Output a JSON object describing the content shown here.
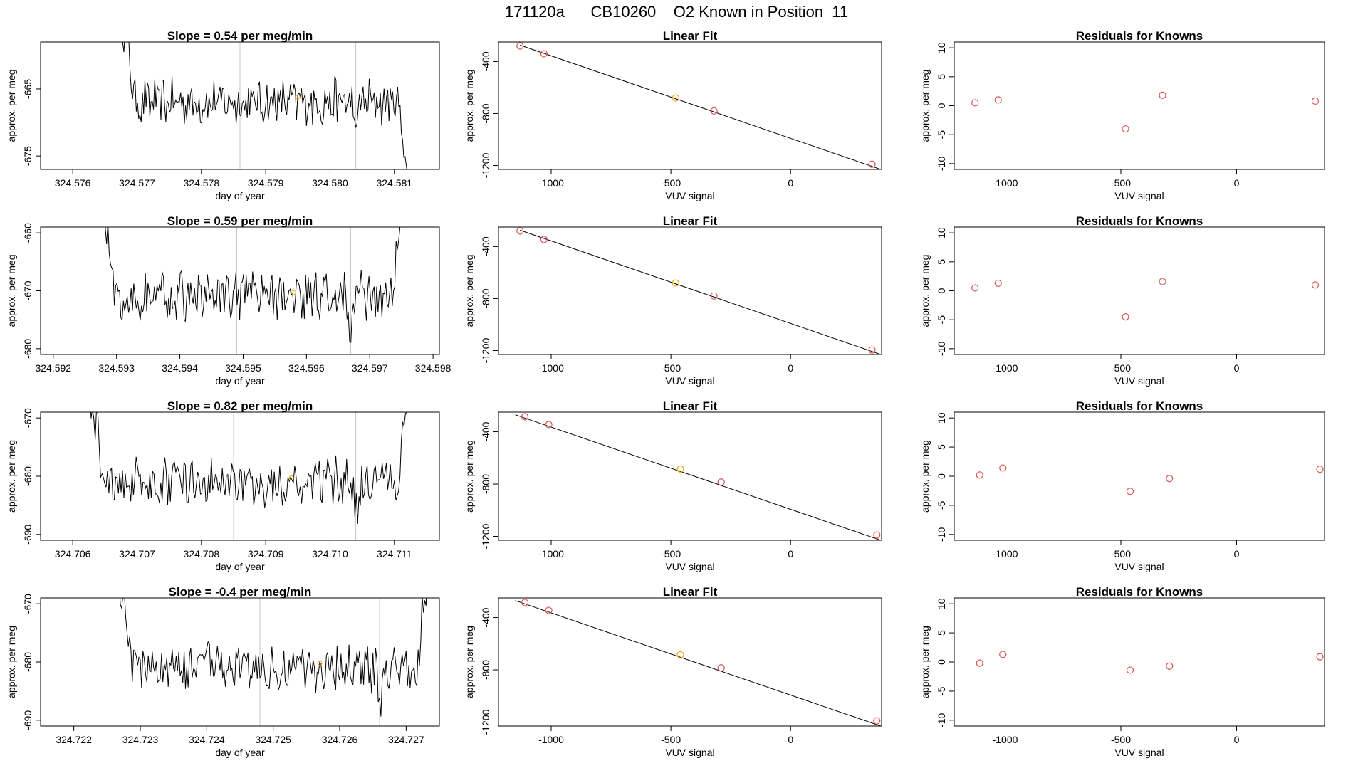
{
  "page": {
    "title": "171120a      CB10260    O2 Known in Position  11"
  },
  "colors": {
    "line": "#000000",
    "highlight": "#e8a317",
    "points": "#d9534f",
    "vline": "#c8c8c8"
  },
  "chart_data": [
    {
      "type": "line",
      "row": 0,
      "col": 0,
      "title": "Slope =  0.54  per meg/min",
      "xlabel": "day of year",
      "ylabel": "approx. per meg",
      "xlim": [
        324.5755,
        324.5817
      ],
      "ylim": [
        -677,
        -658
      ],
      "xticks": [
        324.576,
        324.577,
        324.578,
        324.579,
        324.58,
        324.581
      ],
      "xtick_labels": [
        "324.576",
        "324.577",
        "324.578",
        "324.579",
        "324.580",
        "324.581"
      ],
      "yticks": [
        -675,
        -665
      ],
      "ytick_labels": [
        "-675",
        "-665"
      ],
      "vlines": [
        324.5786,
        324.5804
      ],
      "series_start": 324.5767,
      "series_end": 324.5813,
      "baseline": -667,
      "highlight": {
        "x": 324.5795,
        "y": -666.2
      }
    },
    {
      "type": "scatter",
      "row": 0,
      "col": 1,
      "title": "Linear Fit",
      "xlabel": "VUV signal",
      "ylabel": "approx. per meg",
      "xlim": [
        -1220,
        380
      ],
      "ylim": [
        -1230,
        -250
      ],
      "xticks": [
        -1000,
        -500,
        0
      ],
      "xtick_labels": [
        "-1000",
        "-500",
        "0"
      ],
      "yticks": [
        -400,
        -800,
        -1200
      ],
      "ytick_labels": [
        "-400",
        "-800",
        "-1200"
      ],
      "line": [
        [
          -1130,
          -274
        ],
        [
          380,
          -1232
        ]
      ],
      "points": [
        [
          -1130,
          -280
        ],
        [
          -1030,
          -340
        ],
        [
          -480,
          -680
        ],
        [
          -320,
          -780
        ],
        [
          340,
          -1190
        ]
      ],
      "highlight_index": 2
    },
    {
      "type": "scatter",
      "row": 0,
      "col": 2,
      "title": "Residuals for Knowns",
      "xlabel": "VUV signal",
      "ylabel": "approx. per meg",
      "xlim": [
        -1220,
        380
      ],
      "ylim": [
        -11,
        11
      ],
      "xticks": [
        -1000,
        -500,
        0
      ],
      "xtick_labels": [
        "-1000",
        "-500",
        "0"
      ],
      "yticks": [
        -10,
        -5,
        0,
        5,
        10
      ],
      "ytick_labels": [
        "-10",
        "-5",
        "0",
        "5",
        "10"
      ],
      "points": [
        [
          -1130,
          0.5
        ],
        [
          -1030,
          1
        ],
        [
          -480,
          -4
        ],
        [
          -320,
          1.8
        ],
        [
          340,
          0.8
        ]
      ]
    },
    {
      "type": "line",
      "row": 1,
      "col": 0,
      "title": "Slope =  0.59  per meg/min",
      "xlabel": "day of year",
      "ylabel": "approx. per meg",
      "xlim": [
        324.5918,
        324.5981
      ],
      "ylim": [
        -681,
        -659
      ],
      "xticks": [
        324.592,
        324.593,
        324.594,
        324.595,
        324.596,
        324.597,
        324.598
      ],
      "xtick_labels": [
        "324.592",
        "324.593",
        "324.594",
        "324.595",
        "324.596",
        "324.597",
        "324.598"
      ],
      "yticks": [
        -680,
        -670,
        -660
      ],
      "ytick_labels": [
        "-680",
        "-670",
        "-660"
      ],
      "vlines": [
        324.5949,
        324.5967
      ],
      "series_start": 324.5927,
      "series_end": 324.5976,
      "baseline": -671,
      "highlight": {
        "x": 324.5958,
        "y": -670.3
      }
    },
    {
      "type": "scatter",
      "row": 1,
      "col": 1,
      "title": "Linear Fit",
      "xlabel": "VUV signal",
      "ylabel": "approx. per meg",
      "xlim": [
        -1220,
        380
      ],
      "ylim": [
        -1230,
        -250
      ],
      "xticks": [
        -1000,
        -500,
        0
      ],
      "xtick_labels": [
        "-1000",
        "-500",
        "0"
      ],
      "yticks": [
        -400,
        -800,
        -1200
      ],
      "ytick_labels": [
        "-400",
        "-800",
        "-1200"
      ],
      "line": [
        [
          -1130,
          -274
        ],
        [
          380,
          -1232
        ]
      ],
      "points": [
        [
          -1130,
          -280
        ],
        [
          -1030,
          -345
        ],
        [
          -480,
          -680
        ],
        [
          -320,
          -780
        ],
        [
          340,
          -1195
        ]
      ],
      "highlight_index": 2
    },
    {
      "type": "scatter",
      "row": 1,
      "col": 2,
      "title": "Residuals for Knowns",
      "xlabel": "VUV signal",
      "ylabel": "approx. per meg",
      "xlim": [
        -1220,
        380
      ],
      "ylim": [
        -11,
        11
      ],
      "xticks": [
        -1000,
        -500,
        0
      ],
      "xtick_labels": [
        "-1000",
        "-500",
        "0"
      ],
      "yticks": [
        -10,
        -5,
        0,
        5,
        10
      ],
      "ytick_labels": [
        "-10",
        "-5",
        "0",
        "5",
        "10"
      ],
      "points": [
        [
          -1130,
          0.5
        ],
        [
          -1030,
          1.3
        ],
        [
          -480,
          -4.5
        ],
        [
          -320,
          1.6
        ],
        [
          340,
          1
        ]
      ]
    },
    {
      "type": "line",
      "row": 2,
      "col": 0,
      "title": "Slope =  0.82  per meg/min",
      "xlabel": "day of year",
      "ylabel": "approx. per meg",
      "xlim": [
        324.7055,
        324.7117
      ],
      "ylim": [
        -691,
        -669
      ],
      "xticks": [
        324.706,
        324.707,
        324.708,
        324.709,
        324.71,
        324.711
      ],
      "xtick_labels": [
        "324.706",
        "324.707",
        "324.708",
        "324.709",
        "324.710",
        "324.711"
      ],
      "yticks": [
        -690,
        -680,
        -670
      ],
      "ytick_labels": [
        "-690",
        "-680",
        "-670"
      ],
      "vlines": [
        324.7085,
        324.7104
      ],
      "series_start": 324.7062,
      "series_end": 324.7113,
      "baseline": -681,
      "highlight": {
        "x": 324.7094,
        "y": -680.3
      }
    },
    {
      "type": "scatter",
      "row": 2,
      "col": 1,
      "title": "Linear Fit",
      "xlabel": "VUV signal",
      "ylabel": "approx. per meg",
      "xlim": [
        -1220,
        380
      ],
      "ylim": [
        -1230,
        -250
      ],
      "xticks": [
        -1000,
        -500,
        0
      ],
      "xtick_labels": [
        "-1000",
        "-500",
        "0"
      ],
      "yticks": [
        -400,
        -800,
        -1200
      ],
      "ytick_labels": [
        "-400",
        "-800",
        "-1200"
      ],
      "line": [
        [
          -1150,
          -270
        ],
        [
          380,
          -1232
        ]
      ],
      "points": [
        [
          -1110,
          -285
        ],
        [
          -1010,
          -345
        ],
        [
          -460,
          -685
        ],
        [
          -290,
          -785
        ],
        [
          360,
          -1190
        ]
      ],
      "highlight_index": 2
    },
    {
      "type": "scatter",
      "row": 2,
      "col": 2,
      "title": "Residuals for Knowns",
      "xlabel": "VUV signal",
      "ylabel": "approx. per meg",
      "xlim": [
        -1220,
        380
      ],
      "ylim": [
        -11,
        11
      ],
      "xticks": [
        -1000,
        -500,
        0
      ],
      "xtick_labels": [
        "-1000",
        "-500",
        "0"
      ],
      "yticks": [
        -10,
        -5,
        0,
        5,
        10
      ],
      "ytick_labels": [
        "-10",
        "-5",
        "0",
        "5",
        "10"
      ],
      "points": [
        [
          -1110,
          0.2
        ],
        [
          -1010,
          1.4
        ],
        [
          -460,
          -2.6
        ],
        [
          -290,
          -0.4
        ],
        [
          360,
          1.2
        ]
      ]
    },
    {
      "type": "line",
      "row": 3,
      "col": 0,
      "title": "Slope =  -0.4  per meg/min",
      "xlabel": "day of year",
      "ylabel": "approx. per meg",
      "xlim": [
        324.7215,
        324.7275
      ],
      "ylim": [
        -691,
        -669
      ],
      "xticks": [
        324.722,
        324.723,
        324.724,
        324.725,
        324.726,
        324.727
      ],
      "xtick_labels": [
        "324.722",
        "324.723",
        "324.724",
        "324.725",
        "324.726",
        "324.727"
      ],
      "yticks": [
        -690,
        -680,
        -670
      ],
      "ytick_labels": [
        "-690",
        "-680",
        "-670"
      ],
      "vlines": [
        324.7248,
        324.7266
      ],
      "series_start": 324.7226,
      "series_end": 324.7274,
      "baseline": -681,
      "highlight": {
        "x": 324.7257,
        "y": -680.2
      }
    },
    {
      "type": "scatter",
      "row": 3,
      "col": 1,
      "title": "Linear Fit",
      "xlabel": "VUV signal",
      "ylabel": "approx. per meg",
      "xlim": [
        -1220,
        380
      ],
      "ylim": [
        -1230,
        -250
      ],
      "xticks": [
        -1000,
        -500,
        0
      ],
      "xtick_labels": [
        "-1000",
        "-500",
        "0"
      ],
      "yticks": [
        -400,
        -800,
        -1200
      ],
      "ytick_labels": [
        "-400",
        "-800",
        "-1200"
      ],
      "line": [
        [
          -1150,
          -270
        ],
        [
          380,
          -1232
        ]
      ],
      "points": [
        [
          -1110,
          -285
        ],
        [
          -1010,
          -345
        ],
        [
          -460,
          -685
        ],
        [
          -290,
          -785
        ],
        [
          360,
          -1190
        ]
      ],
      "highlight_index": 2
    },
    {
      "type": "scatter",
      "row": 3,
      "col": 2,
      "title": "Residuals for Knowns",
      "xlabel": "VUV signal",
      "ylabel": "approx. per meg",
      "xlim": [
        -1220,
        380
      ],
      "ylim": [
        -11,
        11
      ],
      "xticks": [
        -1000,
        -500,
        0
      ],
      "xtick_labels": [
        "-1000",
        "-500",
        "0"
      ],
      "yticks": [
        -10,
        -5,
        0,
        5,
        10
      ],
      "ytick_labels": [
        "-10",
        "-5",
        "0",
        "5",
        "10"
      ],
      "points": [
        [
          -1110,
          -0.2
        ],
        [
          -1010,
          1.3
        ],
        [
          -460,
          -1.4
        ],
        [
          -290,
          -0.7
        ],
        [
          360,
          0.9
        ]
      ]
    }
  ]
}
